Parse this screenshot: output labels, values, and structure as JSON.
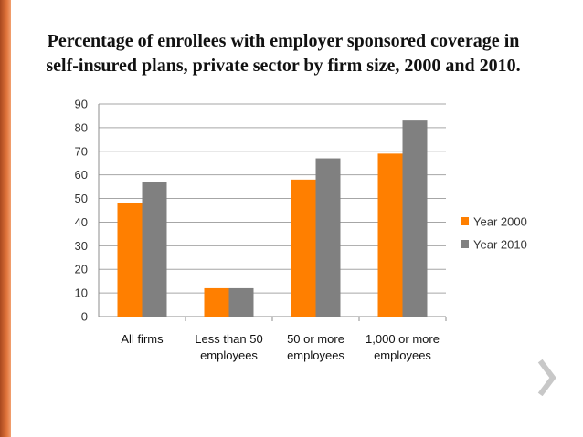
{
  "title_line1": "Percentage of enrollees with employer sponsored coverage in",
  "title_line2": "self-insured plans, private sector by firm size, 2000 and 2010.",
  "chart_data": {
    "type": "bar",
    "categories": [
      [
        "All firms"
      ],
      [
        "Less than 50",
        "employees"
      ],
      [
        "50 or more",
        "employees"
      ],
      [
        "1,000 or more",
        "employees"
      ]
    ],
    "series": [
      {
        "name": "Year 2000",
        "color": "#ff7f00",
        "values": [
          48,
          12,
          58,
          69
        ]
      },
      {
        "name": "Year 2010",
        "color": "#808080",
        "values": [
          57,
          12,
          67,
          83
        ]
      }
    ],
    "ylim": [
      0,
      90
    ],
    "yticks": [
      0,
      10,
      20,
      30,
      40,
      50,
      60,
      70,
      80,
      90
    ],
    "grid": true,
    "legend_position": "right"
  },
  "colors": {
    "accent_bar": "#d96a30",
    "nav_arrow": "#c8c8c8"
  },
  "icons": {
    "nav": "chevron-right-icon"
  }
}
